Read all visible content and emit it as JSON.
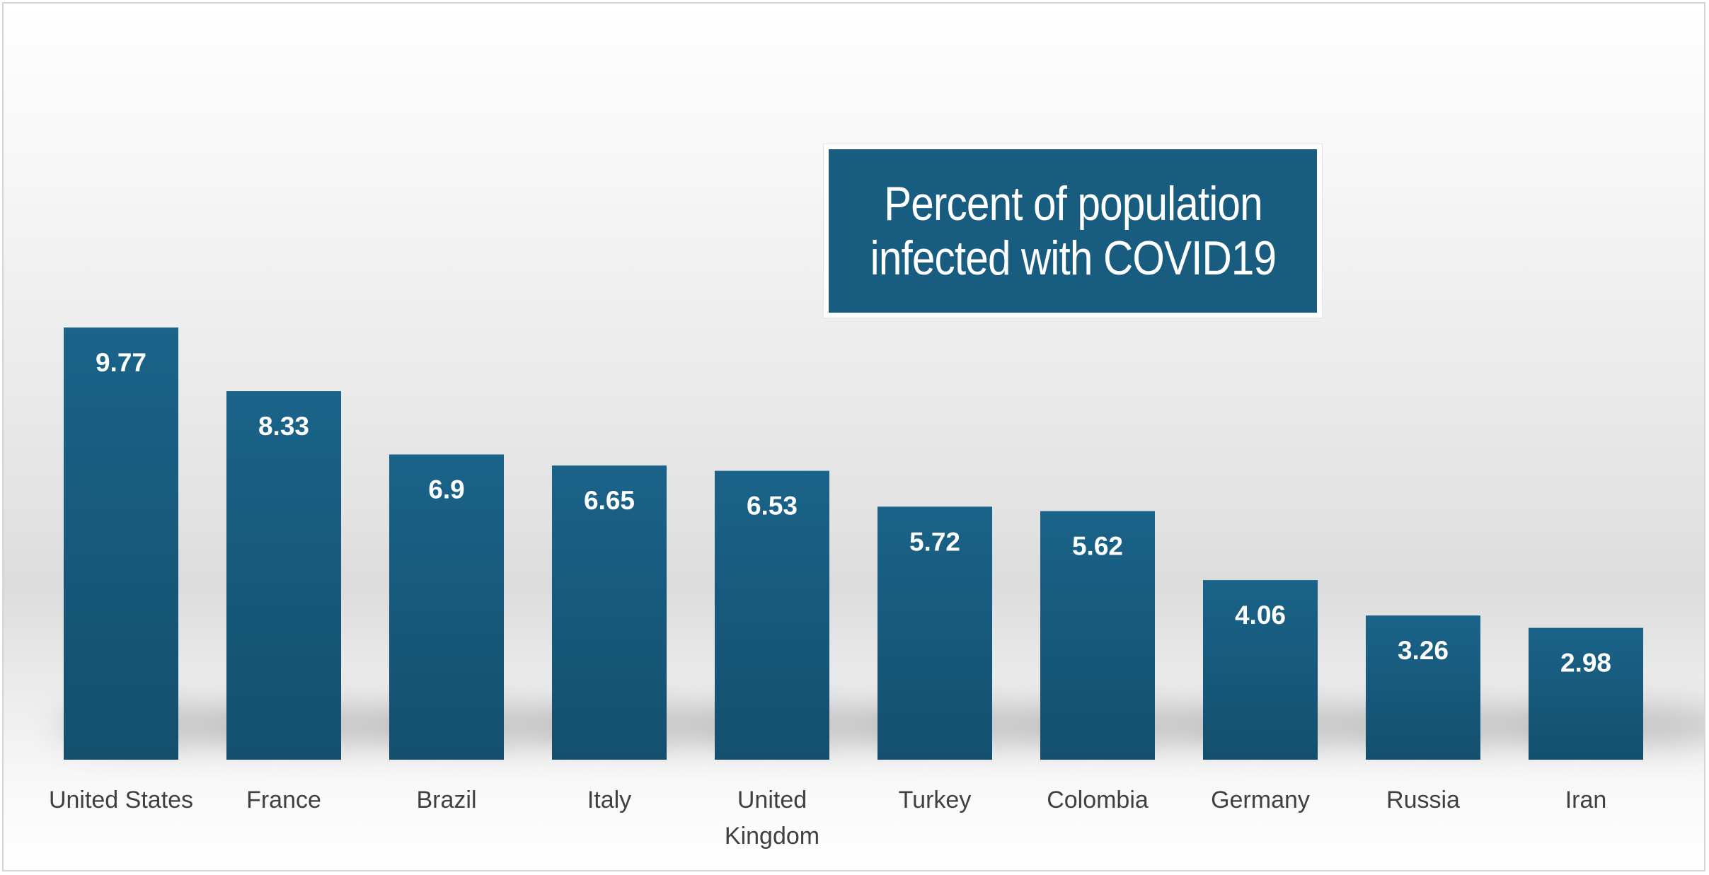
{
  "chart_data": {
    "type": "bar",
    "title": "Percent of population infected with COVID19",
    "xlabel": "",
    "ylabel": "",
    "categories": [
      "United States",
      "France",
      "Brazil",
      "Italy",
      "United Kingdom",
      "Turkey",
      "Colombia",
      "Germany",
      "Russia",
      "Iran"
    ],
    "category_lines": [
      [
        "United States"
      ],
      [
        "France"
      ],
      [
        "Brazil"
      ],
      [
        "Italy"
      ],
      [
        "United",
        "Kingdom"
      ],
      [
        "Turkey"
      ],
      [
        "Colombia"
      ],
      [
        "Germany"
      ],
      [
        "Russia"
      ],
      [
        "Iran"
      ]
    ],
    "values": [
      9.77,
      8.33,
      6.9,
      6.65,
      6.53,
      5.72,
      5.62,
      4.06,
      3.26,
      2.98
    ],
    "value_labels": [
      "9.77",
      "8.33",
      "6.9",
      "6.65",
      "6.53",
      "5.72",
      "5.62",
      "4.06",
      "3.26",
      "2.98"
    ],
    "ylim": [
      0,
      9.77
    ],
    "grid": false,
    "legend": "none",
    "data_labels": "inside-end",
    "colors": {
      "bar_top": "#1a6389",
      "bar_bottom": "#144f6e",
      "label_text": "#ffffff",
      "axis_text": "#404040",
      "title_bg": "#185c80"
    }
  }
}
